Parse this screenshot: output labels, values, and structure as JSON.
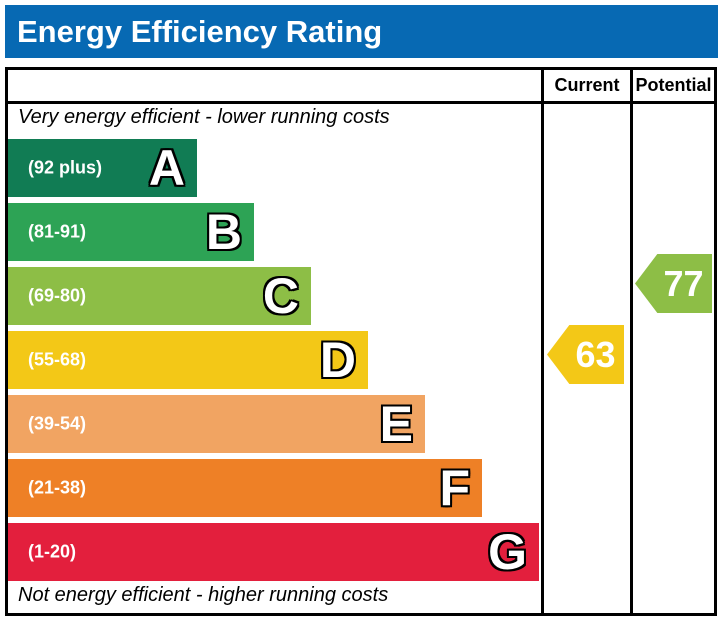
{
  "title": "Energy Efficiency Rating",
  "colors": {
    "title_bar": "#0769b3",
    "border": "#000000",
    "current_arrow": "#f3c817",
    "potential_arrow": "#8dbe46"
  },
  "table": {
    "header_current": "Current",
    "header_potential": "Potential",
    "top_note": "Very energy efficient - lower running costs",
    "bottom_note": "Not energy efficient - higher running costs"
  },
  "bands": [
    {
      "letter": "A",
      "range": "(92 plus)",
      "color": "#117c54"
    },
    {
      "letter": "B",
      "range": "(81-91)",
      "color": "#2da355"
    },
    {
      "letter": "C",
      "range": "(69-80)",
      "color": "#8dbe46"
    },
    {
      "letter": "D",
      "range": "(55-68)",
      "color": "#f3c817"
    },
    {
      "letter": "E",
      "range": "(39-54)",
      "color": "#f1a462"
    },
    {
      "letter": "F",
      "range": "(21-38)",
      "color": "#ee8026"
    },
    {
      "letter": "G",
      "range": "(1-20)",
      "color": "#e31f3d"
    }
  ],
  "current": {
    "value": "63",
    "band": "D"
  },
  "potential": {
    "value": "77",
    "band": "C"
  },
  "chart_data": {
    "type": "bar",
    "title": "Energy Efficiency Rating",
    "categories": [
      "A",
      "B",
      "C",
      "D",
      "E",
      "F",
      "G"
    ],
    "band_ranges": [
      "92 plus",
      "81-91",
      "69-80",
      "55-68",
      "39-54",
      "21-38",
      "1-20"
    ],
    "band_colors": [
      "#117c54",
      "#2da355",
      "#8dbe46",
      "#f3c817",
      "#f1a462",
      "#ee8026",
      "#e31f3d"
    ],
    "series": [
      {
        "name": "Current",
        "value": 63,
        "band": "D"
      },
      {
        "name": "Potential",
        "value": 77,
        "band": "C"
      }
    ],
    "scale": [
      1,
      100
    ],
    "legend_position": "right-columns",
    "annotations": [
      "Very energy efficient - lower running costs",
      "Not energy efficient - higher running costs"
    ]
  }
}
